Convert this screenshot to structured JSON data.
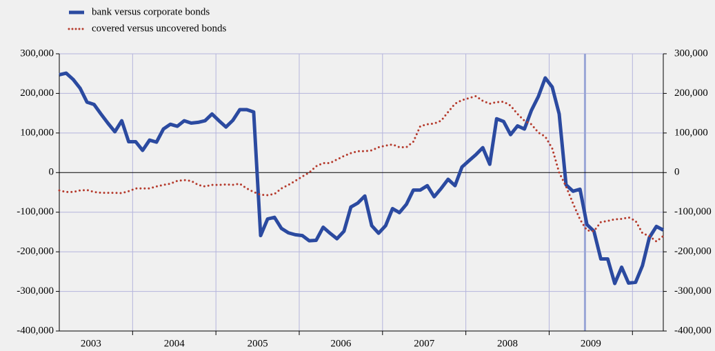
{
  "chart_data": {
    "type": "line",
    "series": [
      {
        "name": "bank versus corporate bonds",
        "color": "#2b4aa0",
        "style": "solid",
        "values": [
          247000,
          251000,
          235000,
          213000,
          178000,
          172000,
          148000,
          125000,
          103000,
          131000,
          78000,
          78000,
          56000,
          82000,
          77000,
          110000,
          122000,
          117000,
          131000,
          125000,
          127000,
          131000,
          148000,
          131000,
          115000,
          132000,
          159000,
          159000,
          153000,
          -159000,
          -117000,
          -113000,
          -141000,
          -152000,
          -157000,
          -159000,
          -172000,
          -171000,
          -138000,
          -153000,
          -167000,
          -148000,
          -87000,
          -77000,
          -59000,
          -134000,
          -153000,
          -134000,
          -91000,
          -101000,
          -80000,
          -44000,
          -44000,
          -33000,
          -61000,
          -40000,
          -17000,
          -33000,
          14000,
          30000,
          45000,
          63000,
          21000,
          136000,
          129000,
          96000,
          118000,
          110000,
          157000,
          192000,
          239000,
          216000,
          148000,
          -31000,
          -47000,
          -42000,
          -131000,
          -148000,
          -218000,
          -218000,
          -280000,
          -239000,
          -279000,
          -277000,
          -235000,
          -164000,
          -136000,
          -145000
        ]
      },
      {
        "name": "covered versus uncovered bonds",
        "color": "#b53a2c",
        "style": "dotted",
        "values": [
          -45000,
          -49000,
          -49000,
          -45000,
          -44000,
          -49000,
          -51000,
          -51000,
          -51000,
          -52000,
          -47000,
          -40000,
          -40000,
          -40000,
          -35000,
          -31000,
          -28000,
          -21000,
          -19000,
          -21000,
          -31000,
          -35000,
          -31000,
          -31000,
          -30000,
          -31000,
          -28000,
          -40000,
          -49000,
          -56000,
          -57000,
          -54000,
          -40000,
          -31000,
          -21000,
          -10000,
          0,
          16000,
          24000,
          24000,
          33000,
          42000,
          49000,
          54000,
          54000,
          56000,
          64000,
          68000,
          71000,
          64000,
          64000,
          78000,
          117000,
          122000,
          124000,
          131000,
          153000,
          174000,
          183000,
          188000,
          193000,
          181000,
          174000,
          178000,
          179000,
          169000,
          148000,
          131000,
          122000,
          101000,
          91000,
          61000,
          0,
          -35000,
          -78000,
          -118000,
          -146000,
          -148000,
          -125000,
          -122000,
          -118000,
          -117000,
          -113000,
          -122000,
          -153000,
          -160000,
          -174000,
          -160000
        ]
      }
    ],
    "x": [
      2003.12,
      2003.203,
      2003.287,
      2003.37,
      2003.453,
      2003.537,
      2003.62,
      2003.703,
      2003.787,
      2003.87,
      2003.953,
      2004.037,
      2004.12,
      2004.203,
      2004.287,
      2004.37,
      2004.453,
      2004.537,
      2004.62,
      2004.703,
      2004.787,
      2004.87,
      2004.953,
      2005.037,
      2005.12,
      2005.203,
      2005.287,
      2005.37,
      2005.453,
      2005.537,
      2005.62,
      2005.703,
      2005.787,
      2005.87,
      2005.953,
      2006.037,
      2006.12,
      2006.203,
      2006.287,
      2006.37,
      2006.453,
      2006.537,
      2006.62,
      2006.703,
      2006.787,
      2006.87,
      2006.953,
      2007.037,
      2007.12,
      2007.203,
      2007.287,
      2007.37,
      2007.453,
      2007.537,
      2007.62,
      2007.703,
      2007.787,
      2007.87,
      2007.953,
      2008.037,
      2008.12,
      2008.203,
      2008.287,
      2008.37,
      2008.453,
      2008.537,
      2008.62,
      2008.703,
      2008.787,
      2008.87,
      2008.953,
      2009.037,
      2009.12,
      2009.203,
      2009.287,
      2009.37,
      2009.453,
      2009.537,
      2009.62,
      2009.703,
      2009.787,
      2009.87,
      2009.953,
      2010.037,
      2010.12,
      2010.203,
      2010.287,
      2010.37
    ],
    "xlim": [
      2003.12,
      2010.37
    ],
    "xticks": [
      {
        "value": 2003.5,
        "label": "2003"
      },
      {
        "value": 2004.5,
        "label": "2004"
      },
      {
        "value": 2005.5,
        "label": "2005"
      },
      {
        "value": 2006.5,
        "label": "2006"
      },
      {
        "value": 2007.5,
        "label": "2007"
      },
      {
        "value": 2008.5,
        "label": "2008"
      },
      {
        "value": 2009.5,
        "label": "2009"
      }
    ],
    "xgrid": [
      2004,
      2005,
      2006,
      2007,
      2008,
      2009,
      2010
    ],
    "ylim": [
      -400000,
      300000
    ],
    "yticks": [
      {
        "value": -400000,
        "label": "-400,000"
      },
      {
        "value": -300000,
        "label": "-300,000"
      },
      {
        "value": -200000,
        "label": "-200,000"
      },
      {
        "value": -100000,
        "label": "-100,000"
      },
      0,
      {
        "value": 100000,
        "label": "100,000"
      },
      {
        "value": 200000,
        "label": "200,000"
      },
      {
        "value": 300000,
        "label": "300,000"
      }
    ],
    "grid": true,
    "highlight_x": 2009.43,
    "legend": "top-left"
  }
}
